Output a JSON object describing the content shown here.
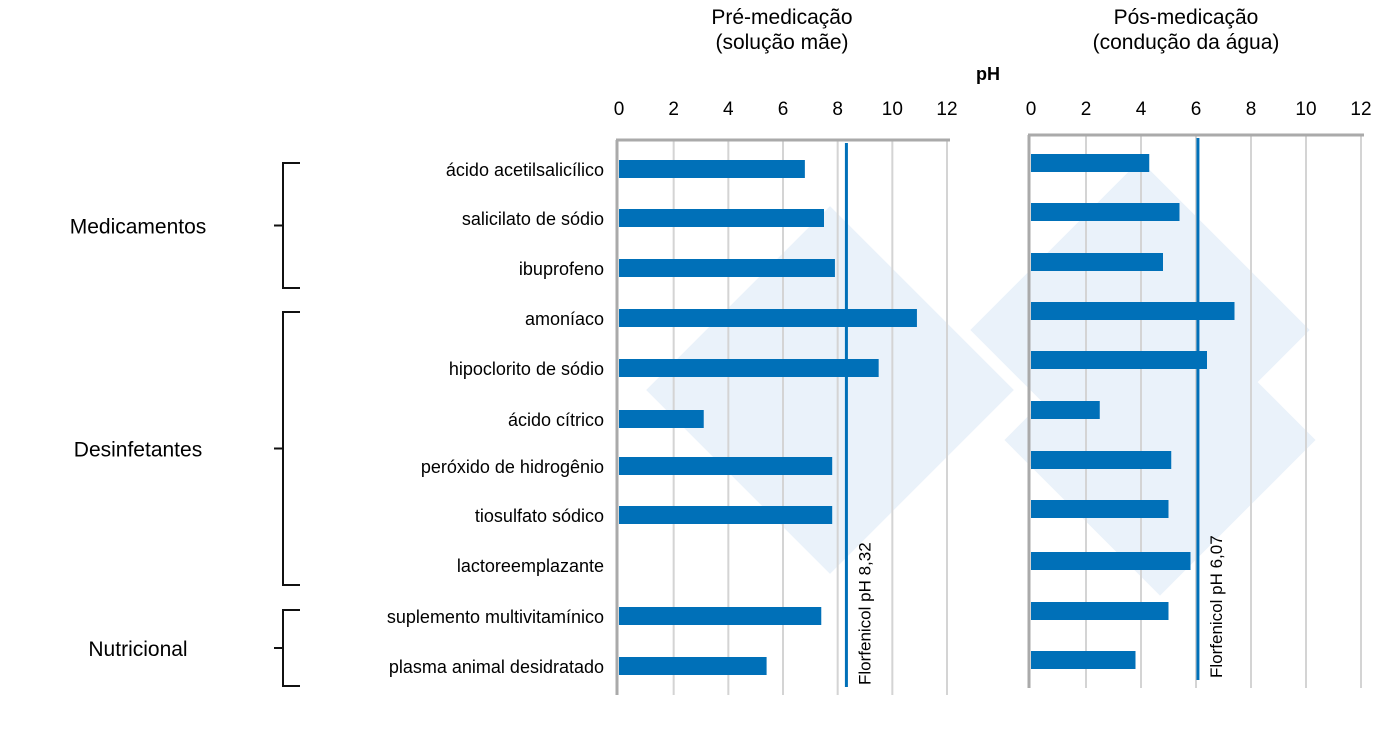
{
  "chart_data": [
    {
      "type": "bar",
      "orientation": "horizontal",
      "title": "Pré-medicação\n(solução mãe)",
      "xlabel": "pH",
      "xlim": [
        0,
        12
      ],
      "xticks": [
        "0",
        "2",
        "4",
        "6",
        "8",
        "10",
        "12"
      ],
      "grid": true,
      "categories": [
        "ácido acetilsalicílico",
        "salicilato de sódio",
        "ibuprofeno",
        "amoníaco",
        "hipoclorito de sódio",
        "ácido cítrico",
        "peróxido de hidrogênio",
        "tiosulfato sódico",
        "lactoreemplazante",
        "suplemento multivitamínico",
        "plasma animal desidratado"
      ],
      "values": [
        6.8,
        7.5,
        7.9,
        10.9,
        9.5,
        3.1,
        7.8,
        7.8,
        null,
        7.4,
        5.4
      ],
      "reference_line": {
        "value": 8.32,
        "label": "Florfenicol pH 8,32"
      },
      "color": "#0070b8"
    },
    {
      "type": "bar",
      "orientation": "horizontal",
      "title": "Pós-medicação\n(condução da água)",
      "xlim": [
        0,
        12
      ],
      "xticks": [
        "0",
        "2",
        "4",
        "6",
        "8",
        "10",
        "12"
      ],
      "grid": true,
      "values": [
        4.3,
        5.4,
        4.8,
        7.4,
        6.4,
        2.5,
        5.1,
        5.0,
        5.8,
        5.0,
        3.8
      ],
      "reference_line": {
        "value": 6.07,
        "label": "Florfenicol pH 6,07"
      },
      "color": "#0070b8"
    }
  ],
  "groups": [
    {
      "label": "Medicamentos",
      "from": 0,
      "to": 2
    },
    {
      "label": "Desinfetantes",
      "from": 3,
      "to": 8
    },
    {
      "label": "Nutricional",
      "from": 9,
      "to": 10
    }
  ]
}
